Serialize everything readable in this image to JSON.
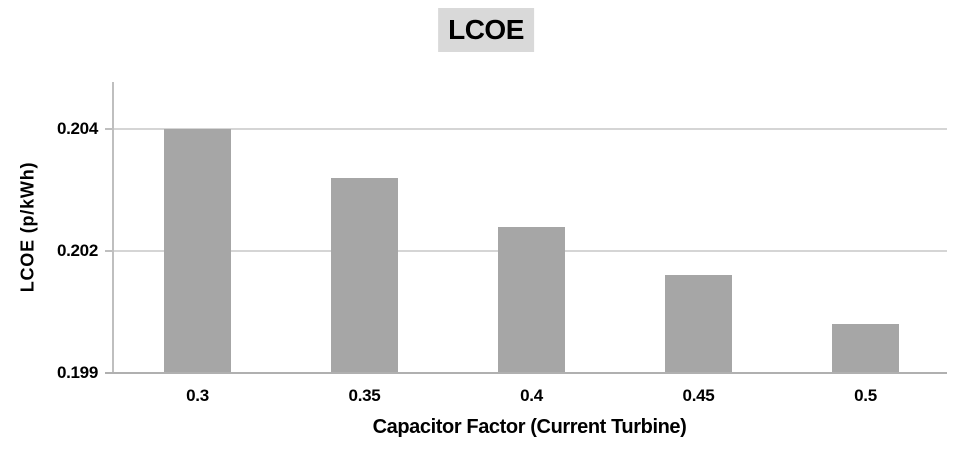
{
  "colors": {
    "background": "#ffffff",
    "bar": "#a6a6a6",
    "gridline": "#d5d5d5",
    "axis_line": "#bfbfbf",
    "baseline": "#b0b0b0",
    "title_background": "#d9d9d9",
    "text": "#000000"
  },
  "chart_data": {
    "type": "bar",
    "title": "LCOE",
    "categories": [
      "0.3",
      "0.35",
      "0.4",
      "0.45",
      "0.5"
    ],
    "values": [
      0.204,
      0.203,
      0.202,
      0.201,
      0.2
    ],
    "xlabel": "Capacitor Factor (Current Turbine)",
    "ylabel": "LCOE (p/kWh)",
    "ylim": [
      0.199,
      0.204
    ],
    "y_ticks": [
      {
        "label": "0.199",
        "value": 0.199
      },
      {
        "label": "0.202",
        "value": 0.2015
      },
      {
        "label": "0.204",
        "value": 0.204
      }
    ],
    "grid": "horizontal",
    "legend": "none",
    "bar_color": "#a6a6a6"
  }
}
